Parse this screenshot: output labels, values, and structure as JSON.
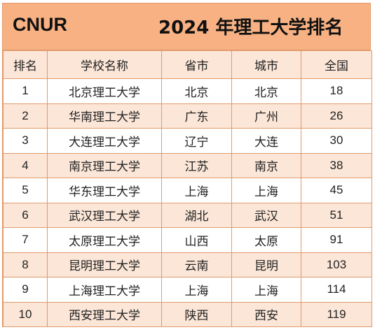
{
  "header": {
    "brand": "CNUR",
    "title": "2024 年理工大学排名"
  },
  "columns": [
    "排名",
    "学校名称",
    "省市",
    "城市",
    "全国"
  ],
  "rows": [
    {
      "rank": "1",
      "school": "北京理工大学",
      "province": "北京",
      "city": "北京",
      "national": "18"
    },
    {
      "rank": "2",
      "school": "华南理工大学",
      "province": "广东",
      "city": "广州",
      "national": "26"
    },
    {
      "rank": "3",
      "school": "大连理工大学",
      "province": "辽宁",
      "city": "大连",
      "national": "30"
    },
    {
      "rank": "4",
      "school": "南京理工大学",
      "province": "江苏",
      "city": "南京",
      "national": "38"
    },
    {
      "rank": "5",
      "school": "华东理工大学",
      "province": "上海",
      "city": "上海",
      "national": "45"
    },
    {
      "rank": "6",
      "school": "武汉理工大学",
      "province": "湖北",
      "city": "武汉",
      "national": "51"
    },
    {
      "rank": "7",
      "school": "太原理工大学",
      "province": "山西",
      "city": "太原",
      "national": "91"
    },
    {
      "rank": "8",
      "school": "昆明理工大学",
      "province": "云南",
      "city": "昆明",
      "national": "103"
    },
    {
      "rank": "9",
      "school": "上海理工大学",
      "province": "上海",
      "city": "上海",
      "national": "114"
    },
    {
      "rank": "10",
      "school": "西安理工大学",
      "province": "陕西",
      "city": "西安",
      "national": "119"
    }
  ],
  "colors": {
    "header_bg": "#f7b183",
    "band_bg": "#fbe6d7",
    "border": "#e09a6a"
  }
}
